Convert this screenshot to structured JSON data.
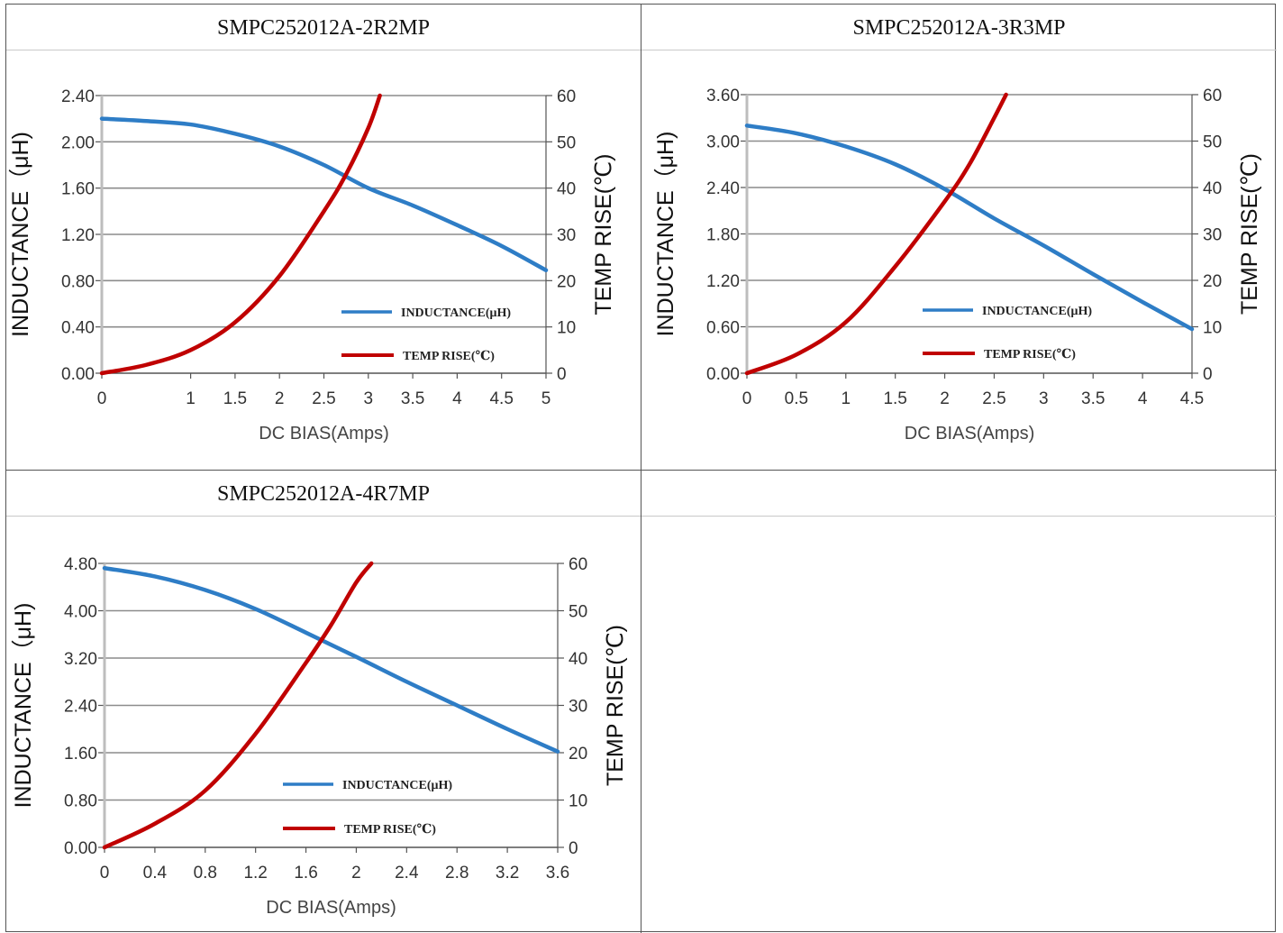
{
  "chart_data": [
    {
      "type": "line",
      "title": "SMPC252012A-2R2MP",
      "xlabel": "DC BIAS(Amps)",
      "ylabel": "INDUCTANCE（μH)",
      "y2label": "TEMP RISE(℃)",
      "xlim": [
        0,
        5
      ],
      "ylim": [
        0,
        2.4
      ],
      "y2lim": [
        0,
        60
      ],
      "xticks": [
        "0",
        "1",
        "1.5",
        "2",
        "2.5",
        "3",
        "3.5",
        "4",
        "4.5",
        "5"
      ],
      "xtick_values": [
        0,
        1,
        1.5,
        2,
        2.5,
        3,
        3.5,
        4,
        4.5,
        5
      ],
      "yticks": [
        "0.00",
        "0.40",
        "0.80",
        "1.20",
        "1.60",
        "2.00",
        "2.40"
      ],
      "y2ticks": [
        "0",
        "10",
        "20",
        "30",
        "40",
        "50",
        "60"
      ],
      "grid": true,
      "legend_position": "bottom-right",
      "series": [
        {
          "name": "INDUCTANCE(μH)",
          "axis": "left",
          "color": "#2e7dc6",
          "x": [
            0,
            0.5,
            1,
            1.5,
            2,
            2.5,
            3,
            3.5,
            4,
            4.5,
            5
          ],
          "y": [
            2.2,
            2.18,
            2.15,
            2.07,
            1.96,
            1.8,
            1.6,
            1.45,
            1.28,
            1.1,
            0.89
          ]
        },
        {
          "name": "TEMP RISE(℃)",
          "axis": "right",
          "color": "#c00000",
          "x": [
            0,
            0.5,
            1,
            1.5,
            2,
            2.5,
            2.75,
            3,
            3.13
          ],
          "y": [
            0,
            1.8,
            5,
            11,
            21,
            35,
            43,
            53,
            60
          ]
        }
      ]
    },
    {
      "type": "line",
      "title": "SMPC252012A-3R3MP",
      "xlabel": "DC BIAS(Amps)",
      "ylabel": "INDUCTANCE（μH)",
      "y2label": "TEMP RISE(℃)",
      "xlim": [
        0,
        4.5
      ],
      "ylim": [
        0,
        3.6
      ],
      "y2lim": [
        0,
        60
      ],
      "xticks": [
        "0",
        "0.5",
        "1",
        "1.5",
        "2",
        "2.5",
        "3",
        "3.5",
        "4",
        "4.5"
      ],
      "xtick_values": [
        0,
        0.5,
        1,
        1.5,
        2,
        2.5,
        3,
        3.5,
        4,
        4.5
      ],
      "yticks": [
        "0.00",
        "0.60",
        "1.20",
        "1.80",
        "2.40",
        "3.00",
        "3.60"
      ],
      "y2ticks": [
        "0",
        "10",
        "20",
        "30",
        "40",
        "50",
        "60"
      ],
      "grid": true,
      "legend_position": "bottom-right",
      "series": [
        {
          "name": "INDUCTANCE(μH)",
          "axis": "left",
          "color": "#2e7dc6",
          "x": [
            0,
            0.5,
            1,
            1.5,
            2,
            2.5,
            3,
            3.5,
            4,
            4.5
          ],
          "y": [
            3.2,
            3.1,
            2.93,
            2.7,
            2.38,
            2.0,
            1.65,
            1.28,
            0.92,
            0.57
          ]
        },
        {
          "name": "TEMP RISE(℃)",
          "axis": "right",
          "color": "#c00000",
          "x": [
            0,
            0.5,
            1,
            1.5,
            2,
            2.25,
            2.5,
            2.62
          ],
          "y": [
            0,
            4,
            11,
            23,
            37,
            45,
            55,
            60
          ]
        }
      ]
    },
    {
      "type": "line",
      "title": "SMPC252012A-4R7MP",
      "xlabel": "DC BIAS(Amps)",
      "ylabel": "INDUCTANCE（μH)",
      "y2label": "TEMP RISE(℃)",
      "xlim": [
        0,
        3.6
      ],
      "ylim": [
        0,
        4.8
      ],
      "y2lim": [
        0,
        60
      ],
      "xticks": [
        "0",
        "0.4",
        "0.8",
        "1.2",
        "1.6",
        "2",
        "2.4",
        "2.8",
        "3.2",
        "3.6"
      ],
      "xtick_values": [
        0,
        0.4,
        0.8,
        1.2,
        1.6,
        2,
        2.4,
        2.8,
        3.2,
        3.6
      ],
      "yticks": [
        "0.00",
        "0.80",
        "1.60",
        "2.40",
        "3.20",
        "4.00",
        "4.80"
      ],
      "y2ticks": [
        "0",
        "10",
        "20",
        "30",
        "40",
        "50",
        "60"
      ],
      "grid": true,
      "legend_position": "bottom-right",
      "series": [
        {
          "name": "INDUCTANCE(μH)",
          "axis": "left",
          "color": "#2e7dc6",
          "x": [
            0,
            0.4,
            0.8,
            1.2,
            1.6,
            2.0,
            2.4,
            2.8,
            3.2,
            3.6
          ],
          "y": [
            4.72,
            4.58,
            4.35,
            4.03,
            3.63,
            3.22,
            2.8,
            2.4,
            2.0,
            1.62
          ]
        },
        {
          "name": "TEMP RISE(℃)",
          "axis": "right",
          "color": "#c00000",
          "x": [
            0,
            0.4,
            0.8,
            1.2,
            1.6,
            1.8,
            2.0,
            2.12
          ],
          "y": [
            0,
            5,
            12,
            24,
            39,
            47,
            56,
            60
          ]
        }
      ]
    }
  ]
}
